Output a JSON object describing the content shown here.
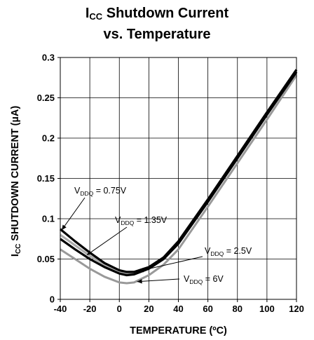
{
  "title": {
    "line1_main": "I",
    "line1_sub": "CC",
    "line1_rest": " Shutdown Current",
    "line2": "vs. Temperature"
  },
  "chart_data": {
    "type": "line",
    "title": "ICC Shutdown Current vs. Temperature",
    "xlabel": "TEMPERATURE (ºC)",
    "ylabel": {
      "main": "I",
      "sub": "CC",
      "rest": " SHUTDOWN CURRENT (µA)"
    },
    "xlim": [
      -40,
      120
    ],
    "ylim": [
      0,
      0.3
    ],
    "xticks": [
      -40,
      -20,
      0,
      20,
      40,
      60,
      80,
      100,
      120
    ],
    "xtick_labels": [
      "-40",
      "-20",
      "0",
      "20",
      "40",
      "60",
      "80",
      "100",
      "120"
    ],
    "yticks": [
      0,
      0.05,
      0.1,
      0.15,
      0.2,
      0.25,
      0.3
    ],
    "ytick_labels": [
      "0",
      "0.05",
      "0.1",
      "0.15",
      "0.2",
      "0.25",
      "0.3"
    ],
    "grid": true,
    "series": [
      {
        "name": "VDDQ = 0.75V",
        "color": "#000000",
        "x": [
          -40,
          -30,
          -20,
          -10,
          0,
          5,
          10,
          20,
          30,
          40,
          60,
          80,
          100,
          120
        ],
        "y": [
          0.087,
          0.072,
          0.058,
          0.045,
          0.036,
          0.034,
          0.034,
          0.04,
          0.052,
          0.072,
          0.124,
          0.178,
          0.232,
          0.285
        ]
      },
      {
        "name": "VDDQ = 1.35V",
        "color": "#000000",
        "x": [
          -40,
          -30,
          -20,
          -10,
          0,
          5,
          10,
          20,
          30,
          40,
          60,
          80,
          100,
          120
        ],
        "y": [
          0.075,
          0.062,
          0.05,
          0.04,
          0.032,
          0.03,
          0.031,
          0.038,
          0.05,
          0.069,
          0.121,
          0.175,
          0.229,
          0.282
        ]
      },
      {
        "name": "VDDQ = 2.5V",
        "color": "#aaaaaa",
        "x": [
          -40,
          -30,
          -20,
          -10,
          0,
          5,
          10,
          20,
          30,
          40,
          60,
          80,
          100,
          120
        ],
        "y": [
          0.08,
          0.067,
          0.054,
          0.043,
          0.035,
          0.033,
          0.033,
          0.039,
          0.051,
          0.07,
          0.122,
          0.176,
          0.23,
          0.283
        ]
      },
      {
        "name": "VDDQ = 6V",
        "color": "#999999",
        "x": [
          -40,
          -30,
          -20,
          -10,
          0,
          5,
          10,
          20,
          30,
          40,
          60,
          80,
          100,
          120
        ],
        "y": [
          0.062,
          0.05,
          0.038,
          0.028,
          0.021,
          0.02,
          0.021,
          0.03,
          0.043,
          0.062,
          0.115,
          0.169,
          0.223,
          0.278
        ]
      }
    ],
    "annotations": [
      {
        "series": "VDDQ = 0.75V",
        "main": "V",
        "sub": "DDQ",
        "rest": " = 0.75V",
        "pointer_x": -39,
        "pointer_y": 0.086
      },
      {
        "series": "VDDQ = 1.35V",
        "main": "V",
        "sub": "DDQ",
        "rest": " = 1.35V",
        "pointer_x": -22,
        "pointer_y": 0.055
      },
      {
        "series": "VDDQ = 2.5V",
        "main": "V",
        "sub": "DDQ",
        "rest": " = 2.5V",
        "pointer_x": 13,
        "pointer_y": 0.035
      },
      {
        "series": "VDDQ = 6V",
        "main": "V",
        "sub": "DDQ",
        "rest": " = 6V",
        "pointer_x": 12,
        "pointer_y": 0.022
      }
    ]
  }
}
